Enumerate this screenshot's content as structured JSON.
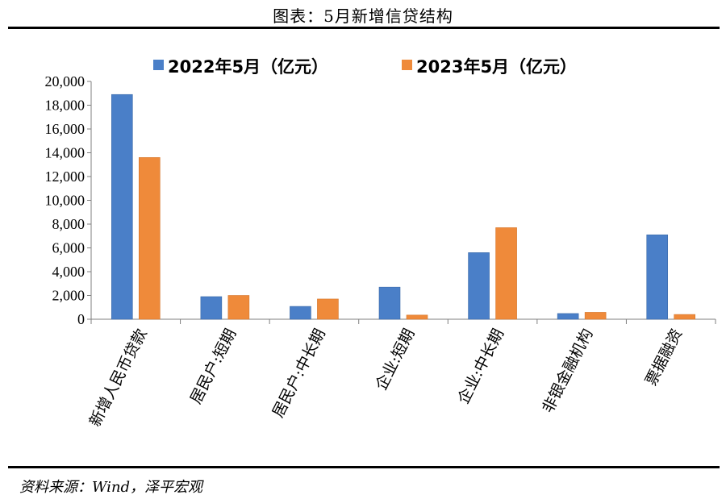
{
  "header": {
    "title": "图表：5月新增信贷结构"
  },
  "footer": {
    "source": "资料来源：Wind，泽平宏观"
  },
  "colors": {
    "series_2022": "#4a7fc8",
    "series_2023": "#ef8a3a",
    "axis": "#7f7f7f"
  },
  "chart_data": {
    "type": "bar",
    "categories": [
      "新增人民币贷款",
      "居民户:短期",
      "居民户:中长期",
      "企业:短期",
      "企业:中长期",
      "非银金融机构",
      "票据融资"
    ],
    "series": [
      {
        "name": "2022年5月（亿元）",
        "values": [
          18900,
          1900,
          1080,
          2700,
          5600,
          480,
          7100
        ]
      },
      {
        "name": "2023年5月（亿元）",
        "values": [
          13600,
          2000,
          1700,
          350,
          7700,
          580,
          400
        ]
      }
    ],
    "yticks": [
      "0",
      "2,000",
      "4,000",
      "6,000",
      "8,000",
      "10,000",
      "12,000",
      "14,000",
      "16,000",
      "18,000",
      "20,000"
    ],
    "ylim": [
      0,
      20000
    ],
    "grid": false,
    "legend_position": "top"
  }
}
